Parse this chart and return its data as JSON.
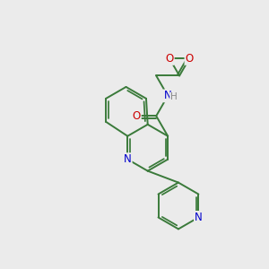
{
  "background_color": "#ebebeb",
  "bond_color": "#3a7a3a",
  "bond_width": 1.4,
  "atom_colors": {
    "O": "#cc0000",
    "N": "#0000cc",
    "H": "#888888"
  },
  "font_size": 8.5,
  "fig_size": [
    3.0,
    3.0
  ],
  "dpi": 100
}
